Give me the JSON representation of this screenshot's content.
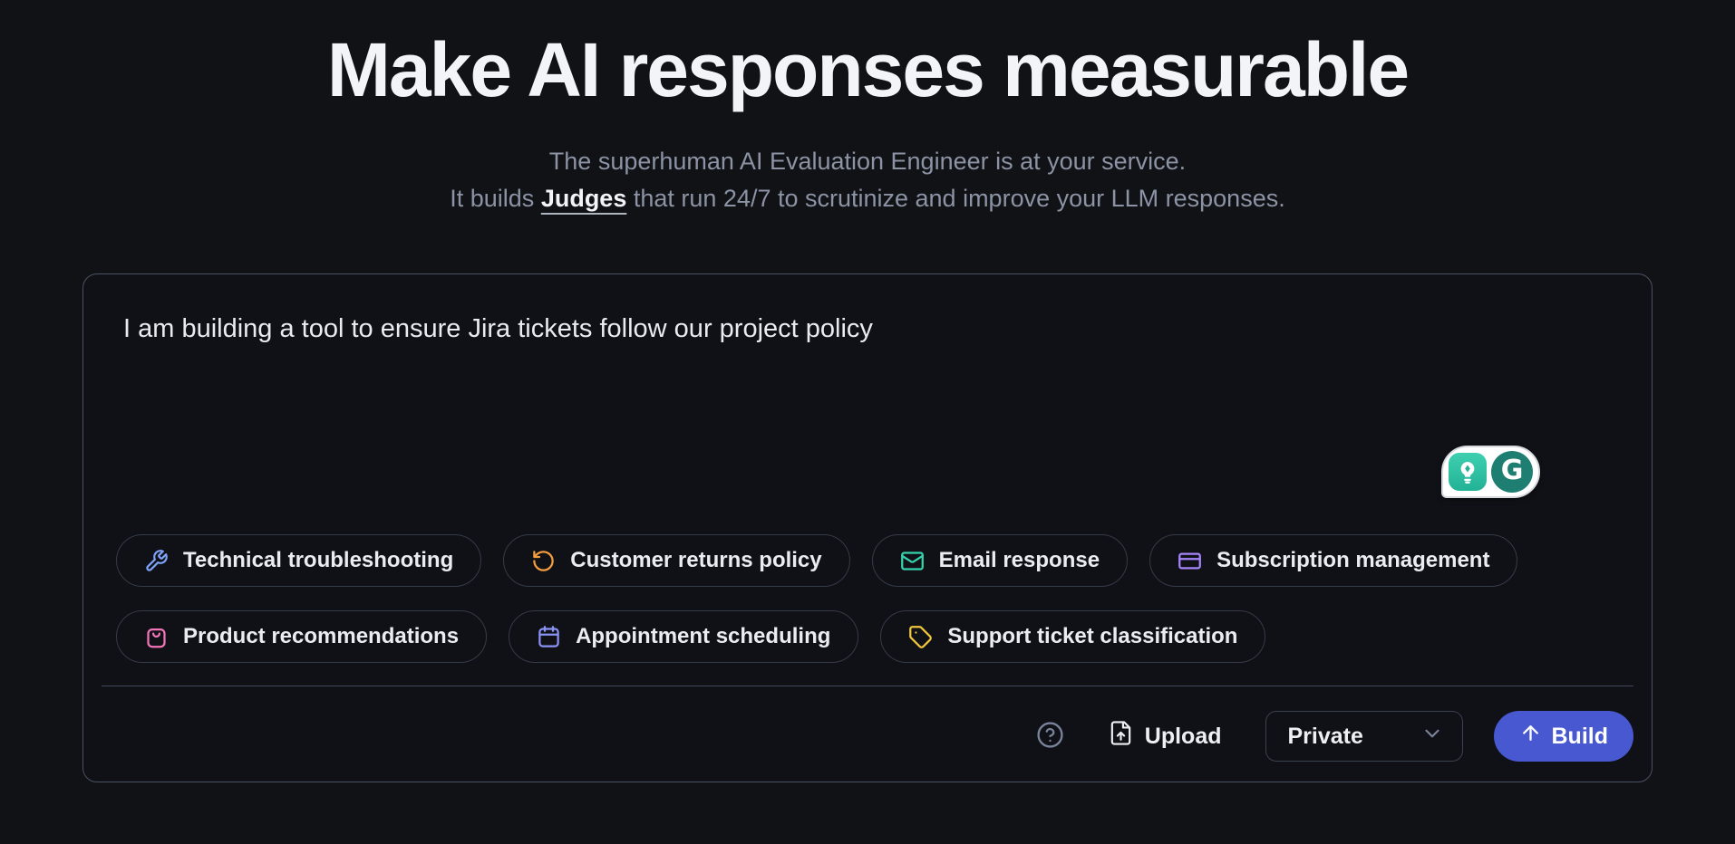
{
  "hero": {
    "title": "Make AI responses measurable",
    "subtitle_line1": "The superhuman AI Evaluation Engineer is at your service.",
    "subtitle_line2_prefix": "It builds ",
    "subtitle_link": "Judges",
    "subtitle_line2_suffix": " that run 24/7 to scrutinize and improve your LLM responses."
  },
  "composer": {
    "input_value": "I am building a tool to ensure Jira tickets follow our project policy",
    "suggestions": [
      {
        "label": "Technical troubleshooting",
        "icon": "wrench-icon",
        "color": "#7da2f7"
      },
      {
        "label": "Customer returns policy",
        "icon": "rotate-ccw-icon",
        "color": "#f49d3f"
      },
      {
        "label": "Email response",
        "icon": "mail-icon",
        "color": "#37d3ad"
      },
      {
        "label": "Subscription management",
        "icon": "credit-card-icon",
        "color": "#a685fa"
      },
      {
        "label": "Product recommendations",
        "icon": "shopping-bag-icon",
        "color": "#f175b8"
      },
      {
        "label": "Appointment scheduling",
        "icon": "calendar-icon",
        "color": "#8a92f6"
      },
      {
        "label": "Support ticket classification",
        "icon": "tag-icon",
        "color": "#f0c63a"
      }
    ],
    "toolbar": {
      "upload_label": "Upload",
      "visibility_value": "Private",
      "build_label": "Build"
    }
  },
  "assist_widget": {
    "g_letter": "G",
    "teal": "#2cb99f",
    "green": "#1f7e72"
  },
  "colors": {
    "background": "#111216",
    "box_border": "#4a5263",
    "chip_border": "#343b49",
    "build_blue": "#4758d0",
    "subtitle_gray": "#8b93a4"
  }
}
